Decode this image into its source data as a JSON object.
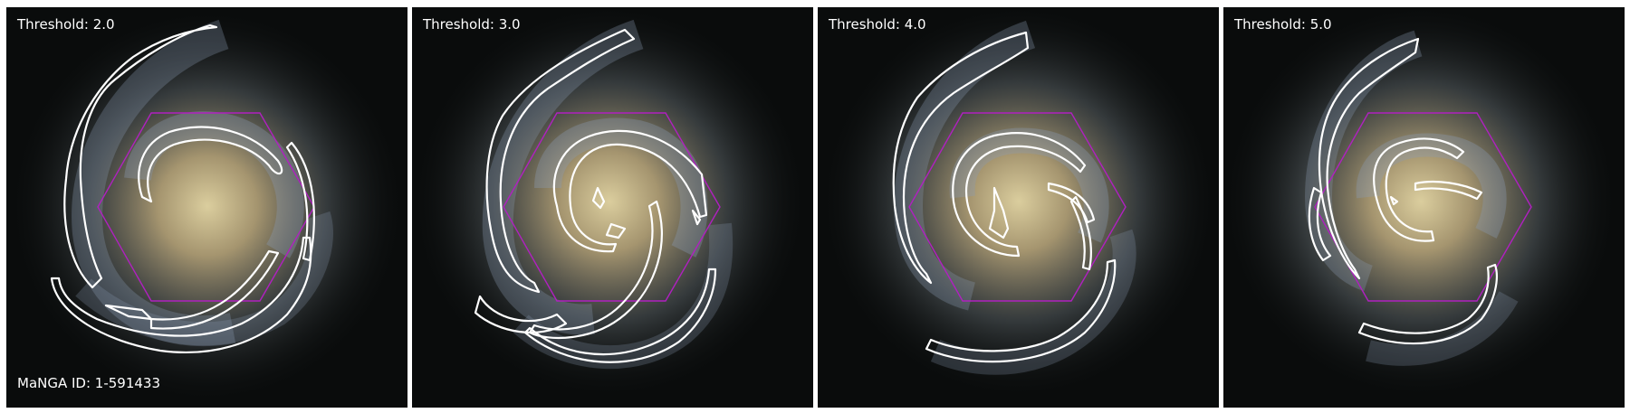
{
  "panels": [
    {
      "threshold_label": "Threshold: 2.0"
    },
    {
      "threshold_label": "Threshold: 3.0"
    },
    {
      "threshold_label": "Threshold: 4.0"
    },
    {
      "threshold_label": "Threshold: 5.0"
    }
  ],
  "galaxy_id_label": "MaNGA ID: 1-591433",
  "colors": {
    "background": "#0a0c0c",
    "core": "#e8d6a0",
    "arms": "#8a9cb4",
    "contour": "#ffffff",
    "hexagon": "#b020c0"
  }
}
